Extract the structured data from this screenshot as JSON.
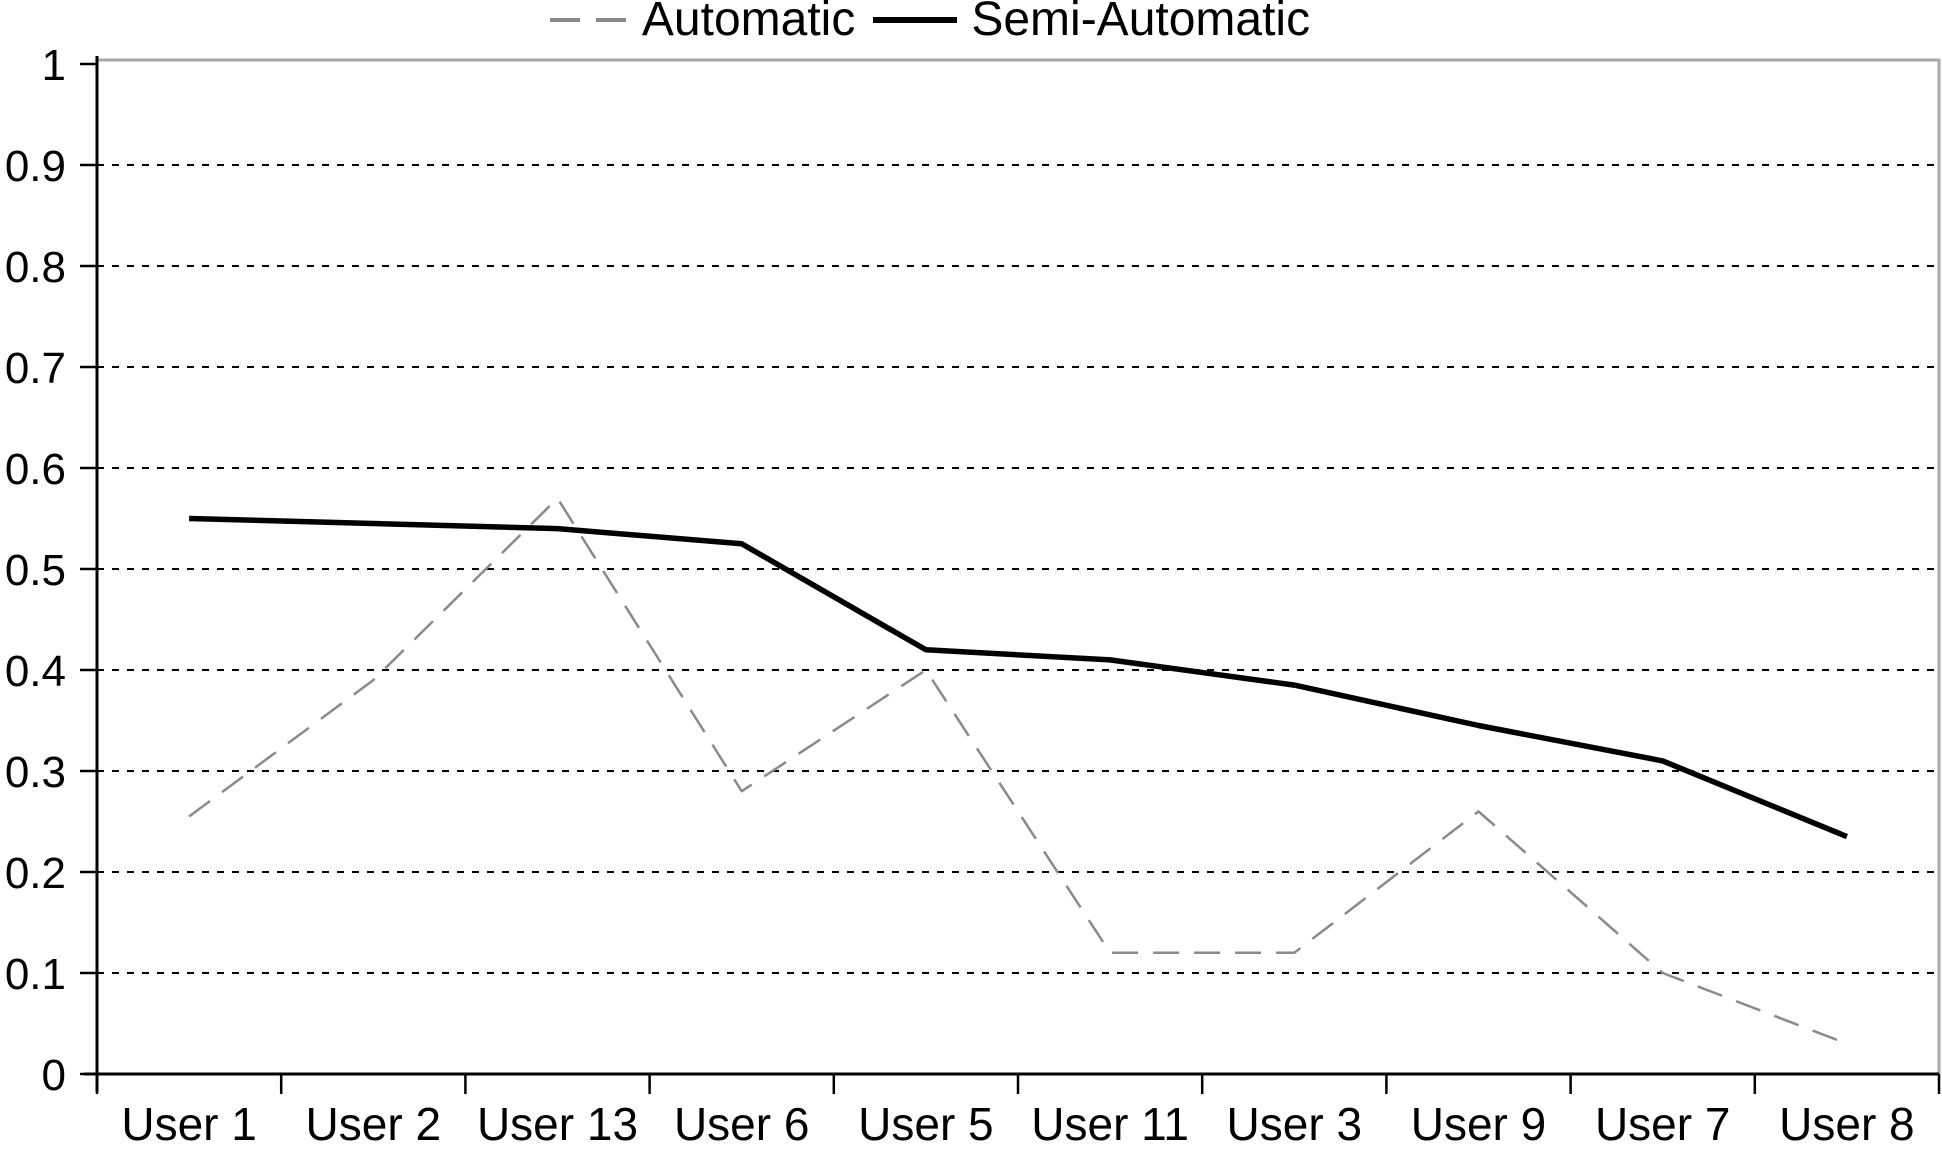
{
  "legend": {
    "items": [
      {
        "label": "Automatic",
        "style": "dashed"
      },
      {
        "label": "Semi-Automatic",
        "style": "solid"
      }
    ]
  },
  "chart_data": {
    "type": "line",
    "title": "",
    "xlabel": "",
    "ylabel": "",
    "categories": [
      "User 1",
      "User 2",
      "User 13",
      "User 6",
      "User 5",
      "User 11",
      "User 3",
      "User 9",
      "User 7",
      "User 8"
    ],
    "series": [
      {
        "name": "Automatic",
        "style": "dashed",
        "color": "#8a8a8a",
        "values": [
          0.255,
          0.39,
          0.57,
          0.28,
          0.4,
          0.12,
          0.12,
          0.26,
          0.1,
          0.03
        ]
      },
      {
        "name": "Semi-Automatic",
        "style": "solid",
        "color": "#000000",
        "values": [
          0.55,
          0.545,
          0.54,
          0.525,
          0.42,
          0.41,
          0.385,
          0.345,
          0.31,
          0.235
        ]
      }
    ],
    "ylim": [
      0,
      1
    ],
    "y_tick_labels": [
      "1",
      "0.9",
      "0.8",
      "0.7",
      "0.6",
      "0.5",
      "0.4",
      "0.3",
      "0.2",
      "0.1",
      "0"
    ],
    "grid": "horizontal-dotted",
    "legend_position": "top-center",
    "border_color_top_right": "#a8a8a8",
    "axis_color": "#000000"
  }
}
